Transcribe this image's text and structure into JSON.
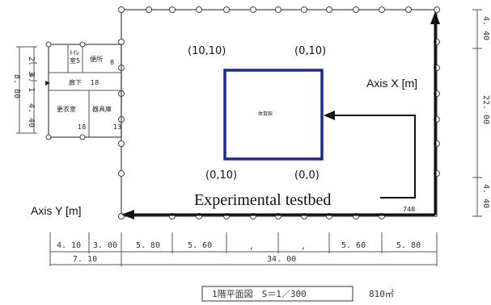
{
  "coords": {
    "top_left": "(10,10)",
    "top_right": "(0,10)",
    "bottom_left": "(0,10)",
    "bottom_right": "(0,0)"
  },
  "axis_x_label": "Axis X [m]",
  "axis_y_label": "Axis Y [m]",
  "testbed_label": "Experimental testbed",
  "gym_label": "体育館",
  "rooms": {
    "toilet": "ﾄｲﾚ",
    "toilet_suffix": "室5",
    "kitchen": "便所",
    "kitchen_no": "8",
    "corridor": "廊下",
    "corridor_no": "18",
    "changing": "更衣室",
    "changing_no": "18",
    "storage": "器具庫",
    "storage_no": "13"
  },
  "dims_bottom_row1": [
    "4. 10",
    "3. 00",
    "5. 80",
    "5. 60",
    "5. 60",
    "5. 80"
  ],
  "dims_bottom_row2": [
    "7. 10",
    "34. 00"
  ],
  "dims_right": [
    "4. 40",
    "22. 00",
    "4. 40"
  ],
  "dims_left": [
    "2. 3",
    "4. 1",
    "4. 40",
    "8. 80"
  ],
  "code_label": "748",
  "plan_title": "1階平面図　S＝1／300",
  "area_label": "810㎡",
  "colors": {
    "testbed": "#1a2a9a",
    "arrow": "#111111"
  }
}
